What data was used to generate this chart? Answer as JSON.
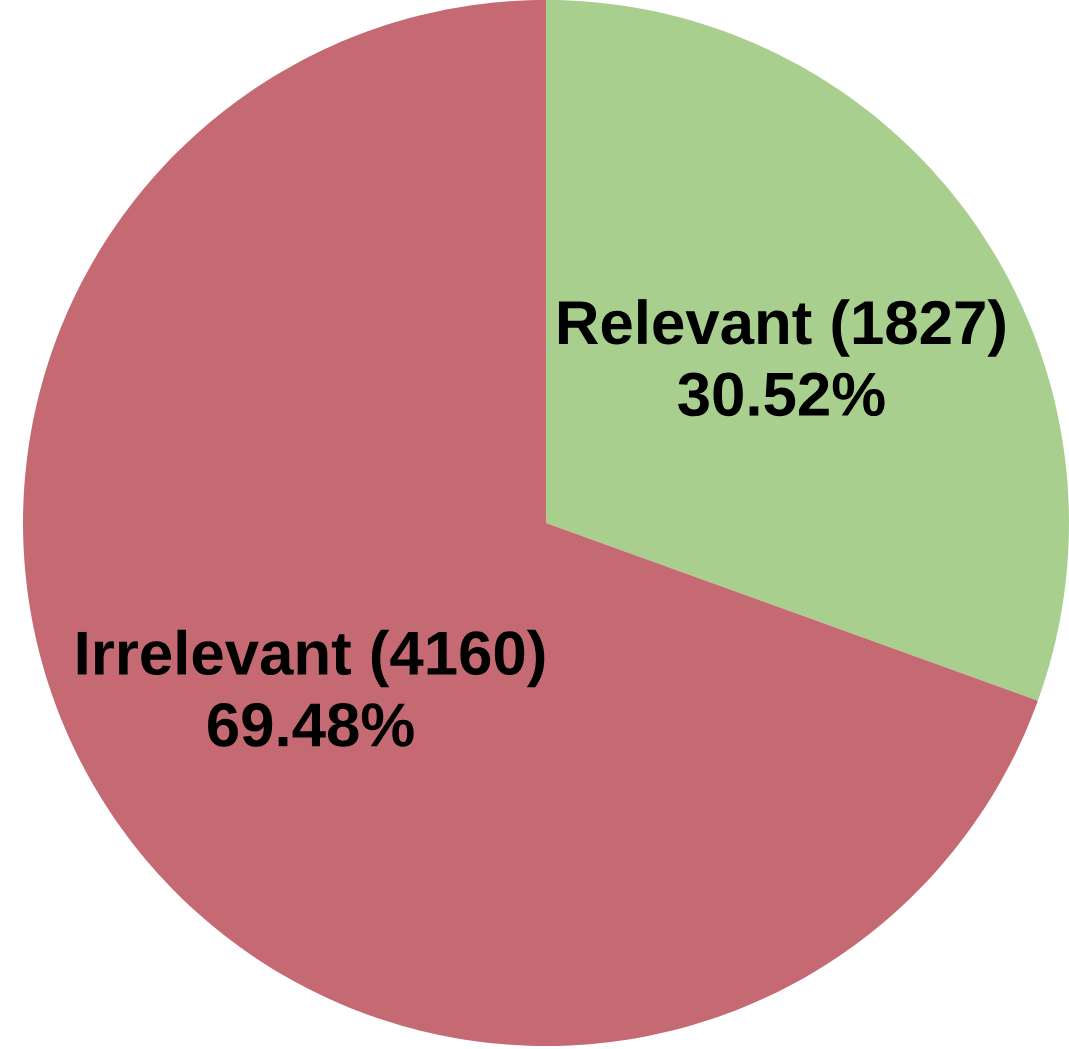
{
  "chart_data": {
    "type": "pie",
    "categories": [
      "Relevant (1827)",
      "Irrelevant (4160)"
    ],
    "values": [
      30.52,
      69.48
    ],
    "value_labels": [
      "30.52%",
      "69.48%"
    ],
    "colors": [
      "#a9cf8f",
      "#c56a72"
    ]
  }
}
